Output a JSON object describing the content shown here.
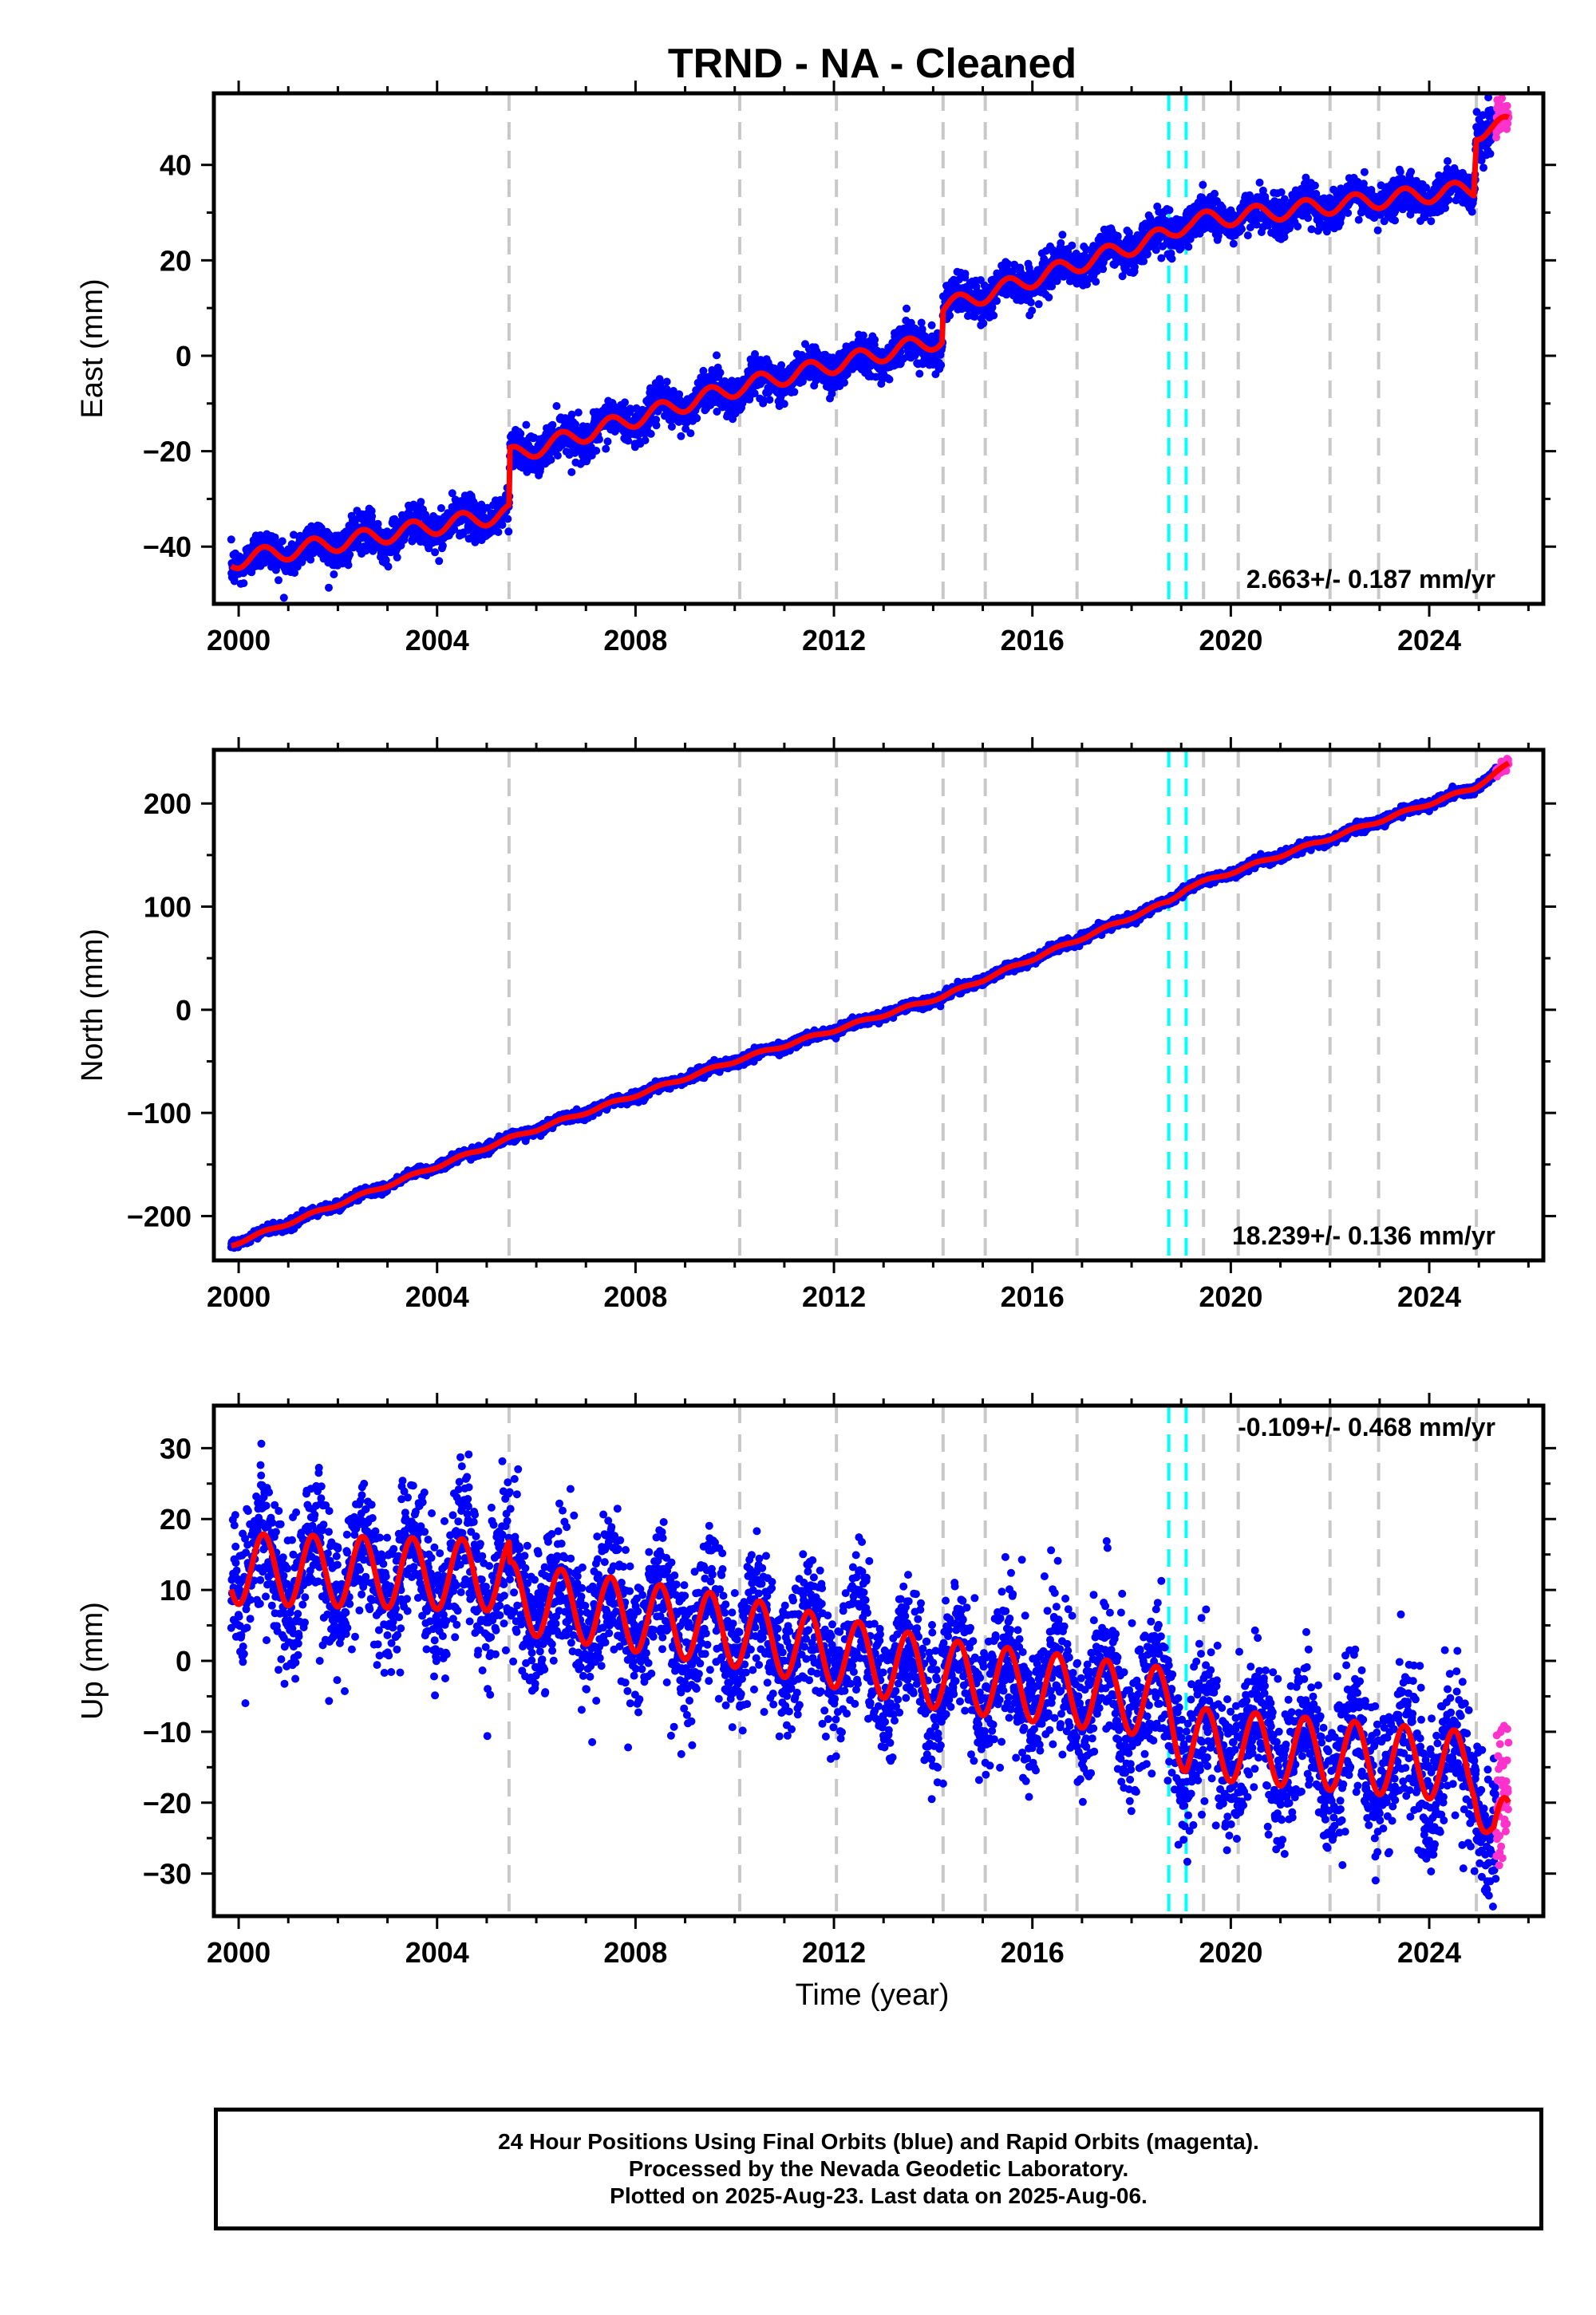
{
  "figure": {
    "title": "TRND  - NA - Cleaned",
    "xlabel": "Time (year)",
    "caption": [
      "24 Hour Positions Using Final Orbits (blue) and Rapid Orbits (magenta).",
      "Processed by the Nevada Geodetic Laboratory.",
      "Plotted on 2025-Aug-23. Last data on 2025-Aug-06."
    ],
    "colors": {
      "final_orbits": "#0000ff",
      "rapid_orbits": "#ff33cc",
      "model_fit": "#ff0000",
      "equipment_change": "#c8c8c8",
      "earthquake": "#00ffff",
      "axes": "#000000"
    }
  },
  "chart_data": [
    {
      "type": "scatter",
      "component": "east",
      "ylabel": "East (mm)",
      "xlim": [
        1999.5,
        2026.3
      ],
      "ylim": [
        -52,
        55
      ],
      "xticks": [
        2000,
        2004,
        2008,
        2012,
        2016,
        2020,
        2024
      ],
      "xtick_labels": [
        "2000",
        "2004",
        "2008",
        "2012",
        "2016",
        "2020",
        "2024"
      ],
      "yticks": [
        -40,
        -20,
        0,
        20,
        40
      ],
      "ytick_labels": [
        "−40",
        "−20",
        "0",
        "20",
        "40"
      ],
      "rate_label": "2.663+/- 0.187 mm/yr",
      "rate_label_position": "bottom-right",
      "grid": false,
      "time_start": 1999.85,
      "rapid_start": 2025.35,
      "time_end": 2025.6,
      "noise": 2.0,
      "seasonal_amplitude": 1.8,
      "model_anchors": [
        [
          1999.85,
          -43
        ],
        [
          2005.45,
          -33
        ],
        [
          2005.47,
          -21
        ],
        [
          2010.1,
          -6.5
        ],
        [
          2014.18,
          3.5
        ],
        [
          2014.2,
          10
        ],
        [
          2018.75,
          25.5
        ],
        [
          2019.1,
          28
        ],
        [
          2024.9,
          35
        ],
        [
          2024.95,
          47
        ],
        [
          2025.6,
          48.5
        ]
      ],
      "series": [
        {
          "name": "Final Orbits",
          "color": "#0000ff"
        },
        {
          "name": "Rapid Orbits",
          "color": "#ff33cc"
        },
        {
          "name": "Model",
          "color": "#ff0000"
        }
      ]
    },
    {
      "type": "scatter",
      "component": "north",
      "ylabel": "North (mm)",
      "xlim": [
        1999.5,
        2026.3
      ],
      "ylim": [
        -243,
        252
      ],
      "xticks": [
        2000,
        2004,
        2008,
        2012,
        2016,
        2020,
        2024
      ],
      "xtick_labels": [
        "2000",
        "2004",
        "2008",
        "2012",
        "2016",
        "2020",
        "2024"
      ],
      "yticks": [
        -200,
        -100,
        0,
        100,
        200
      ],
      "ytick_labels": [
        "−200",
        "−100",
        "0",
        "100",
        "200"
      ],
      "rate_label": "18.239+/- 0.136 mm/yr",
      "rate_label_position": "bottom-right",
      "grid": false,
      "time_start": 1999.85,
      "rapid_start": 2025.35,
      "time_end": 2025.6,
      "noise": 2.2,
      "seasonal_amplitude": 1.5,
      "model_anchors": [
        [
          1999.85,
          -228
        ],
        [
          2005.45,
          -125
        ],
        [
          2010.1,
          -48
        ],
        [
          2014.2,
          13
        ],
        [
          2018.75,
          105
        ],
        [
          2019.1,
          118
        ],
        [
          2024.9,
          215
        ],
        [
          2025.6,
          238
        ]
      ],
      "series": [
        {
          "name": "Final Orbits",
          "color": "#0000ff"
        },
        {
          "name": "Rapid Orbits",
          "color": "#ff33cc"
        },
        {
          "name": "Model",
          "color": "#ff0000"
        }
      ]
    },
    {
      "type": "scatter",
      "component": "up",
      "ylabel": "Up (mm)",
      "xlim": [
        1999.5,
        2026.3
      ],
      "ylim": [
        -36,
        36
      ],
      "xticks": [
        2000,
        2004,
        2008,
        2012,
        2016,
        2020,
        2024
      ],
      "xtick_labels": [
        "2000",
        "2004",
        "2008",
        "2012",
        "2016",
        "2020",
        "2024"
      ],
      "yticks": [
        -30,
        -20,
        -10,
        0,
        10,
        20,
        30
      ],
      "ytick_labels": [
        "−30",
        "−20",
        "−10",
        "0",
        "10",
        "20",
        "30"
      ],
      "rate_label": "-0.109+/- 0.468 mm/yr",
      "rate_label_position": "top-right",
      "grid": false,
      "time_start": 1999.85,
      "rapid_start": 2025.35,
      "time_end": 2025.6,
      "noise": 5.0,
      "seasonal_amplitude": 5.0,
      "model_anchors": [
        [
          1999.85,
          13
        ],
        [
          2005.45,
          12
        ],
        [
          2005.47,
          9
        ],
        [
          2010.1,
          4
        ],
        [
          2014.2,
          -2
        ],
        [
          2018.75,
          -6
        ],
        [
          2019.1,
          -11.5
        ],
        [
          2024.9,
          -15
        ],
        [
          2025.3,
          -25
        ],
        [
          2025.6,
          -24
        ]
      ],
      "series": [
        {
          "name": "Final Orbits",
          "color": "#0000ff"
        },
        {
          "name": "Rapid Orbits",
          "color": "#ff33cc"
        },
        {
          "name": "Model",
          "color": "#ff0000"
        }
      ]
    }
  ],
  "equipment_changes": [
    2005.45,
    2010.1,
    2012.05,
    2014.2,
    2015.05,
    2016.9,
    2019.45,
    2020.15,
    2022.0,
    2022.98,
    2024.95
  ],
  "earthquakes": [
    2018.75,
    2019.1
  ]
}
